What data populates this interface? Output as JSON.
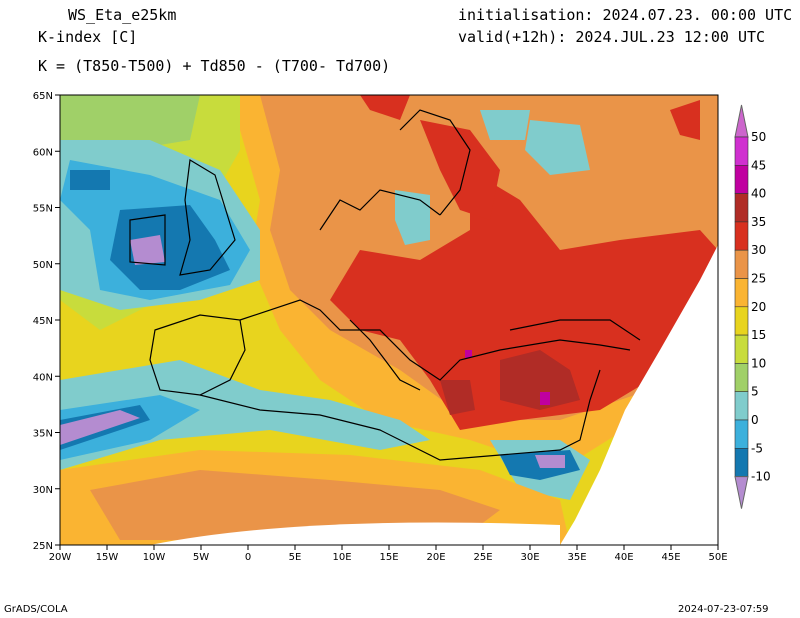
{
  "header": {
    "model": "WS_Eta_e25km",
    "variable": "K-index [C]",
    "formula": "K = (T850-T500) + Td850 - (T700- Td700)",
    "init": "initialisation: 2024.07.23. 00:00 UTC",
    "valid": "valid(+12h): 2024.JUL.23 12:00 UTC"
  },
  "map": {
    "lat_labels": [
      "65N",
      "60N",
      "55N",
      "50N",
      "45N",
      "40N",
      "35N",
      "30N",
      "25N"
    ],
    "lon_labels": [
      "20W",
      "15W",
      "10W",
      "5W",
      "0",
      "5E",
      "10E",
      "15E",
      "20E",
      "25E",
      "30E",
      "35E",
      "40E",
      "45E",
      "50E"
    ]
  },
  "colorbar": {
    "labels": [
      "50",
      "45",
      "40",
      "35",
      "30",
      "25",
      "20",
      "15",
      "10",
      "5",
      "0",
      "-5",
      "-10"
    ],
    "colors": {
      "above50": "#cc66cc",
      "45_50": "#d030d0",
      "40_45": "#c000a0",
      "35_40": "#b02c26",
      "30_35": "#d8301f",
      "25_30": "#ea9448",
      "20_25": "#fab432",
      "15_20": "#e8d41e",
      "10_15": "#c8dc3c",
      "5_10": "#a0d068",
      "0_5": "#80cccc",
      "m5_0": "#3cb0dc",
      "m10_m5": "#1478b0",
      "below_m10": "#b48cd0"
    }
  },
  "footer": {
    "left": "GrADS/COLA",
    "right": "2024-07-23-07:59"
  }
}
